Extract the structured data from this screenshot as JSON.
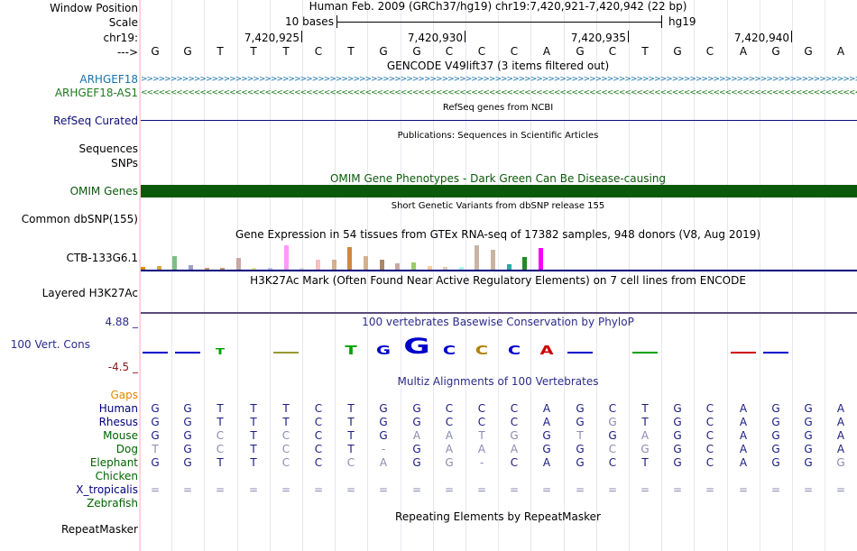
{
  "header": {
    "window_position_label": "Window Position",
    "scale_label": "Scale",
    "chrom_label": "chr19:",
    "arrow_label": "--->",
    "assembly_text": "Human Feb. 2009 (GRCh37/hg19)   chr19:7,420,921-7,420,942 (22 bp)",
    "scale_text": "10 bases",
    "db_text": "hg19",
    "coords": [
      "7,420,925",
      "7,420,930",
      "7,420,935",
      "7,420,940"
    ]
  },
  "sequence": [
    "G",
    "G",
    "T",
    "T",
    "T",
    "C",
    "T",
    "G",
    "G",
    "C",
    "C",
    "C",
    "A",
    "G",
    "C",
    "T",
    "G",
    "C",
    "A",
    "G",
    "G",
    "A"
  ],
  "tracks": {
    "gencode_title": "GENCODE V49lift37 (3 items filtered out)",
    "gene1": "ARHGEF18",
    "gene2": "ARHGEF18-AS1",
    "refseq_label": "RefSeq Curated",
    "refseq_title": "RefSeq genes from NCBI",
    "pubs_title": "Publications: Sequences in Scientific Articles",
    "sequences_label": "Sequences",
    "snps_label": "SNPs",
    "omim_title": "OMIM Gene Phenotypes - Dark Green Can Be Disease-causing",
    "omim_label": "OMIM Genes",
    "dbsnp_title": "Short Genetic Variants from dbSNP release 155",
    "dbsnp_label": "Common dbSNP(155)",
    "gtex_title": "Gene Expression in 54 tissues from GTEx RNA-seq of 17382 samples, 948 donors (V8, Aug 2019)",
    "gtex_label": "CTB-133G6.1",
    "h3k_title": "H3K27Ac Mark (Often Found Near Active Regulatory Elements) on 7 cell lines from ENCODE",
    "h3k_label": "Layered H3K27Ac",
    "cons_title": "100 vertebrates Basewise Conservation by PhyloP",
    "cons_max": "4.88 _",
    "cons_label": "100 Vert. Cons",
    "cons_min": "-4.5 _",
    "multiz_title": "Multiz Alignments of 100 Vertebrates",
    "gaps_label": "Gaps",
    "repeat_title": "Repeating Elements by RepeatMasker",
    "repeat_label": "RepeatMasker"
  },
  "species": [
    {
      "name": "Human",
      "color": "#000080",
      "bases": [
        "G",
        "G",
        "T",
        "T",
        "T",
        "C",
        "T",
        "G",
        "G",
        "C",
        "C",
        "C",
        "A",
        "G",
        "C",
        "T",
        "G",
        "C",
        "A",
        "G",
        "G",
        "A"
      ],
      "dim": []
    },
    {
      "name": "Rhesus",
      "color": "#000080",
      "bases": [
        "G",
        "G",
        "T",
        "T",
        "T",
        "C",
        "T",
        "G",
        "G",
        "C",
        "C",
        "C",
        "A",
        "G",
        "G",
        "T",
        "G",
        "C",
        "A",
        "G",
        "G",
        "A"
      ],
      "dim": [
        14
      ]
    },
    {
      "name": "Mouse",
      "color": "#006400",
      "bases": [
        "G",
        "G",
        "C",
        "T",
        "C",
        "C",
        "T",
        "G",
        "A",
        "A",
        "T",
        "G",
        "G",
        "T",
        "G",
        "A",
        "G",
        "C",
        "A",
        "G",
        "G",
        "A"
      ],
      "dim": [
        2,
        4,
        8,
        9,
        10,
        11,
        13,
        15
      ]
    },
    {
      "name": "Dog",
      "color": "#006400",
      "bases": [
        "T",
        "G",
        "C",
        "T",
        "C",
        "C",
        "T",
        "-",
        "G",
        "A",
        "A",
        "A",
        "G",
        "G",
        "C",
        "G",
        "G",
        "C",
        "A",
        "G",
        "G",
        "A"
      ],
      "dim": [
        0,
        2,
        4,
        7,
        9,
        10,
        11,
        14,
        15
      ]
    },
    {
      "name": "Elephant",
      "color": "#006400",
      "bases": [
        "G",
        "G",
        "T",
        "T",
        "C",
        "C",
        "C",
        "A",
        "G",
        "G",
        "-",
        "C",
        "A",
        "G",
        "C",
        "T",
        "G",
        "C",
        "A",
        "G",
        "G",
        "G"
      ],
      "dim": [
        4,
        6,
        7,
        9,
        10,
        21
      ]
    },
    {
      "name": "Chicken",
      "color": "#006400",
      "bases": [],
      "dim": []
    },
    {
      "name": "X_tropicalis",
      "color": "#000080",
      "bases": [
        "=",
        "=",
        "=",
        "=",
        "=",
        "=",
        "=",
        "=",
        "=",
        "=",
        "=",
        "=",
        "=",
        "=",
        "=",
        "=",
        "=",
        "=",
        "=",
        "=",
        "=",
        "="
      ],
      "dim": [
        0,
        1,
        2,
        3,
        4,
        5,
        6,
        7,
        8,
        9,
        10,
        11,
        12,
        13,
        14,
        15,
        16,
        17,
        18,
        19,
        20,
        21
      ]
    },
    {
      "name": "Zebrafish",
      "color": "#006400",
      "bases": [],
      "dim": []
    }
  ],
  "colors": {
    "gene1": "#1a73a8",
    "gene2": "#1e7a1e",
    "refseq": "#0c0c78",
    "omim": "#0b5a0b",
    "gtex_title": "#000000",
    "cons": "#2b2b8a",
    "cons_min": "#8b1a1a",
    "gaps": "#e08a00",
    "h3k_line": "#5a4a7a"
  },
  "gtex_values": [
    {
      "color": "#e08a00",
      "level": 0.12
    },
    {
      "color": "#d4a64a",
      "level": 0.15
    },
    {
      "color": "#7fbf7f",
      "level": 0.55
    },
    {
      "color": "#9e9ec8",
      "level": 0.18
    },
    {
      "color": "#cc9966",
      "level": 0.05
    },
    {
      "color": "#cc9966",
      "level": 0.05
    },
    {
      "color": "#c8a8a0",
      "level": 0.45
    },
    {
      "color": "#e6e680",
      "level": 0.06
    },
    {
      "color": "#c0c0ff",
      "level": 0.05
    },
    {
      "color": "#ff99ff",
      "level": 0.95
    },
    {
      "color": "#ddd",
      "level": 0.05
    },
    {
      "color": "#f5c0c0",
      "level": 0.4
    },
    {
      "color": "#d4b08c",
      "level": 0.4
    },
    {
      "color": "#cc8844",
      "level": 0.9
    },
    {
      "color": "#d4b08c",
      "level": 0.55
    },
    {
      "color": "#aa8866",
      "level": 0.4
    },
    {
      "color": "#c8a8a0",
      "level": 0.25
    },
    {
      "color": "#99cc66",
      "level": 0.3
    },
    {
      "color": "#ffcc99",
      "level": 0.15
    },
    {
      "color": "#ddccbb",
      "level": 0.1
    },
    {
      "color": "#a6ffe6",
      "level": 0.1
    },
    {
      "color": "#c8b4a0",
      "level": 0.95
    },
    {
      "color": "#c8b4a0",
      "level": 0.8
    },
    {
      "color": "#2fa8a8",
      "level": 0.2
    },
    {
      "color": "#228b22",
      "level": 0.5
    },
    {
      "color": "#ff00ff",
      "level": 0.85
    }
  ],
  "cons_logo": [
    {
      "pos": 0,
      "letter": "T",
      "color": "#0000cc",
      "kind": "dash"
    },
    {
      "pos": 1,
      "letter": "G",
      "color": "#0000cc",
      "kind": "dash"
    },
    {
      "pos": 2,
      "letter": "T",
      "color": "#00a000",
      "kind": "small"
    },
    {
      "pos": 4,
      "letter": "T",
      "color": "#999933",
      "kind": "dash"
    },
    {
      "pos": 6,
      "letter": "T",
      "color": "#00a000",
      "kind": "mid"
    },
    {
      "pos": 7,
      "letter": "G",
      "color": "#0000cc",
      "kind": "mid"
    },
    {
      "pos": 8,
      "letter": "G",
      "color": "#0000cc",
      "kind": "big"
    },
    {
      "pos": 9,
      "letter": "C",
      "color": "#0000cc",
      "kind": "mid"
    },
    {
      "pos": 10,
      "letter": "C",
      "color": "#b08000",
      "kind": "mid"
    },
    {
      "pos": 11,
      "letter": "C",
      "color": "#0000cc",
      "kind": "mid"
    },
    {
      "pos": 12,
      "letter": "A",
      "color": "#cc0000",
      "kind": "mid"
    },
    {
      "pos": 13,
      "letter": "G",
      "color": "#0000cc",
      "kind": "dash"
    },
    {
      "pos": 15,
      "letter": "T",
      "color": "#00a000",
      "kind": "dash"
    },
    {
      "pos": 18,
      "letter": "A",
      "color": "#cc0000",
      "kind": "dash"
    },
    {
      "pos": 19,
      "letter": "G",
      "color": "#0000cc",
      "kind": "dash"
    }
  ]
}
